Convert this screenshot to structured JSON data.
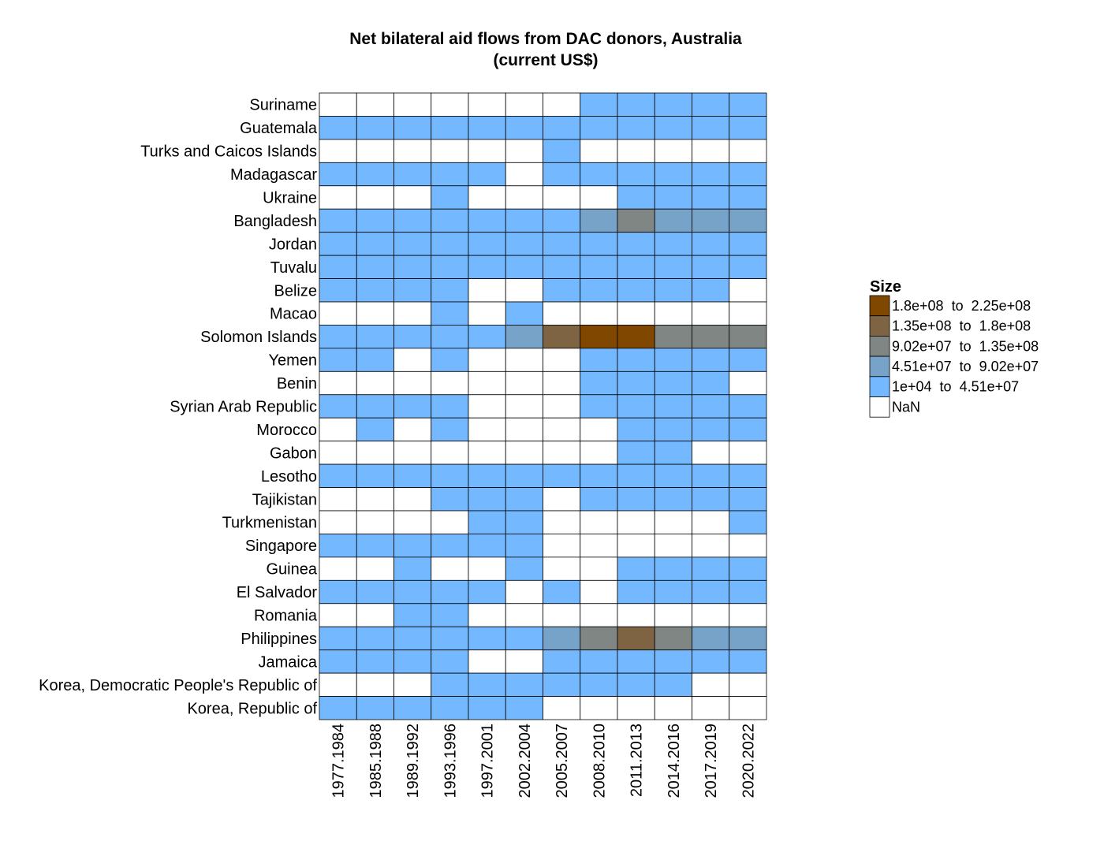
{
  "chart_data": {
    "type": "heatmap",
    "title": [
      "Net bilateral aid flows from DAC donors, Australia",
      "(current US$)"
    ],
    "xlabel": "",
    "ylabel": "",
    "columns": [
      "1977.1984",
      "1985.1988",
      "1989.1992",
      "1993.1996",
      "1997.2001",
      "2002.2004",
      "2005.2007",
      "2008.2010",
      "2011.2013",
      "2014.2016",
      "2017.2019",
      "2020.2022"
    ],
    "rows": [
      "Suriname",
      "Guatemala",
      "Turks and Caicos Islands",
      "Madagascar",
      "Ukraine",
      "Bangladesh",
      "Jordan",
      "Tuvalu",
      "Belize",
      "Macao",
      "Solomon Islands",
      "Yemen",
      "Benin",
      "Syrian Arab Republic",
      "Morocco",
      "Gabon",
      "Lesotho",
      "Tajikistan",
      "Turkmenistan",
      "Singapore",
      "Guinea",
      "El Salvador",
      "Romania",
      "Philippines",
      "Jamaica",
      "Korea, Democratic People's Republic of",
      "Korea, Republic of"
    ],
    "bin_colors": [
      "#ffffff",
      "#74b9ff",
      "#77a3c8",
      "#7f8684",
      "#7f6443",
      "#7f4700"
    ],
    "legend": {
      "title": "Size",
      "position": "right",
      "entries": [
        {
          "label": "1.8e+08  to  2.25e+08",
          "bin": 5
        },
        {
          "label": "1.35e+08  to  1.8e+08",
          "bin": 4
        },
        {
          "label": "9.02e+07  to  1.35e+08",
          "bin": 3
        },
        {
          "label": "4.51e+07  to  9.02e+07",
          "bin": 2
        },
        {
          "label": "1e+04  to  4.51e+07",
          "bin": 1
        },
        {
          "label": "NaN",
          "bin": 0
        }
      ]
    },
    "bins": [
      [
        0,
        0,
        0,
        0,
        0,
        0,
        0,
        1,
        1,
        1,
        1,
        1
      ],
      [
        1,
        1,
        1,
        1,
        1,
        1,
        1,
        1,
        1,
        1,
        1,
        1
      ],
      [
        0,
        0,
        0,
        0,
        0,
        0,
        1,
        0,
        0,
        0,
        0,
        0
      ],
      [
        1,
        1,
        1,
        1,
        1,
        0,
        1,
        1,
        1,
        1,
        1,
        1
      ],
      [
        0,
        0,
        0,
        1,
        0,
        0,
        0,
        0,
        1,
        1,
        1,
        1
      ],
      [
        1,
        1,
        1,
        1,
        1,
        1,
        1,
        2,
        3,
        2,
        2,
        2
      ],
      [
        1,
        1,
        1,
        1,
        1,
        1,
        1,
        1,
        1,
        1,
        1,
        1
      ],
      [
        1,
        1,
        1,
        1,
        1,
        1,
        1,
        1,
        1,
        1,
        1,
        1
      ],
      [
        1,
        1,
        1,
        1,
        0,
        0,
        1,
        1,
        1,
        1,
        1,
        0
      ],
      [
        0,
        0,
        0,
        1,
        0,
        1,
        0,
        0,
        0,
        0,
        0,
        0
      ],
      [
        1,
        1,
        1,
        1,
        1,
        2,
        4,
        5,
        5,
        3,
        3,
        3
      ],
      [
        1,
        1,
        0,
        1,
        0,
        0,
        0,
        1,
        1,
        1,
        1,
        1
      ],
      [
        0,
        0,
        0,
        0,
        0,
        0,
        0,
        1,
        1,
        1,
        1,
        0
      ],
      [
        1,
        1,
        1,
        1,
        0,
        0,
        0,
        1,
        1,
        1,
        1,
        1
      ],
      [
        0,
        1,
        0,
        1,
        0,
        0,
        0,
        0,
        1,
        1,
        1,
        1
      ],
      [
        0,
        0,
        0,
        0,
        0,
        0,
        0,
        0,
        1,
        1,
        0,
        0
      ],
      [
        1,
        1,
        1,
        1,
        1,
        1,
        1,
        1,
        1,
        1,
        1,
        1
      ],
      [
        0,
        0,
        0,
        1,
        1,
        1,
        0,
        1,
        1,
        1,
        1,
        1
      ],
      [
        0,
        0,
        0,
        0,
        1,
        1,
        0,
        0,
        0,
        0,
        0,
        1
      ],
      [
        1,
        1,
        1,
        1,
        1,
        1,
        0,
        0,
        0,
        0,
        0,
        0
      ],
      [
        0,
        0,
        1,
        0,
        0,
        1,
        0,
        0,
        1,
        1,
        1,
        1
      ],
      [
        1,
        1,
        1,
        1,
        1,
        0,
        1,
        0,
        1,
        1,
        1,
        1
      ],
      [
        0,
        0,
        1,
        1,
        0,
        0,
        0,
        0,
        0,
        0,
        0,
        0
      ],
      [
        1,
        1,
        1,
        1,
        1,
        1,
        2,
        3,
        4,
        3,
        2,
        2
      ],
      [
        1,
        1,
        1,
        1,
        0,
        0,
        1,
        1,
        1,
        1,
        1,
        1
      ],
      [
        0,
        0,
        0,
        1,
        1,
        1,
        1,
        1,
        1,
        1,
        0,
        0
      ],
      [
        1,
        1,
        1,
        1,
        1,
        1,
        0,
        0,
        0,
        0,
        0,
        0
      ]
    ]
  }
}
